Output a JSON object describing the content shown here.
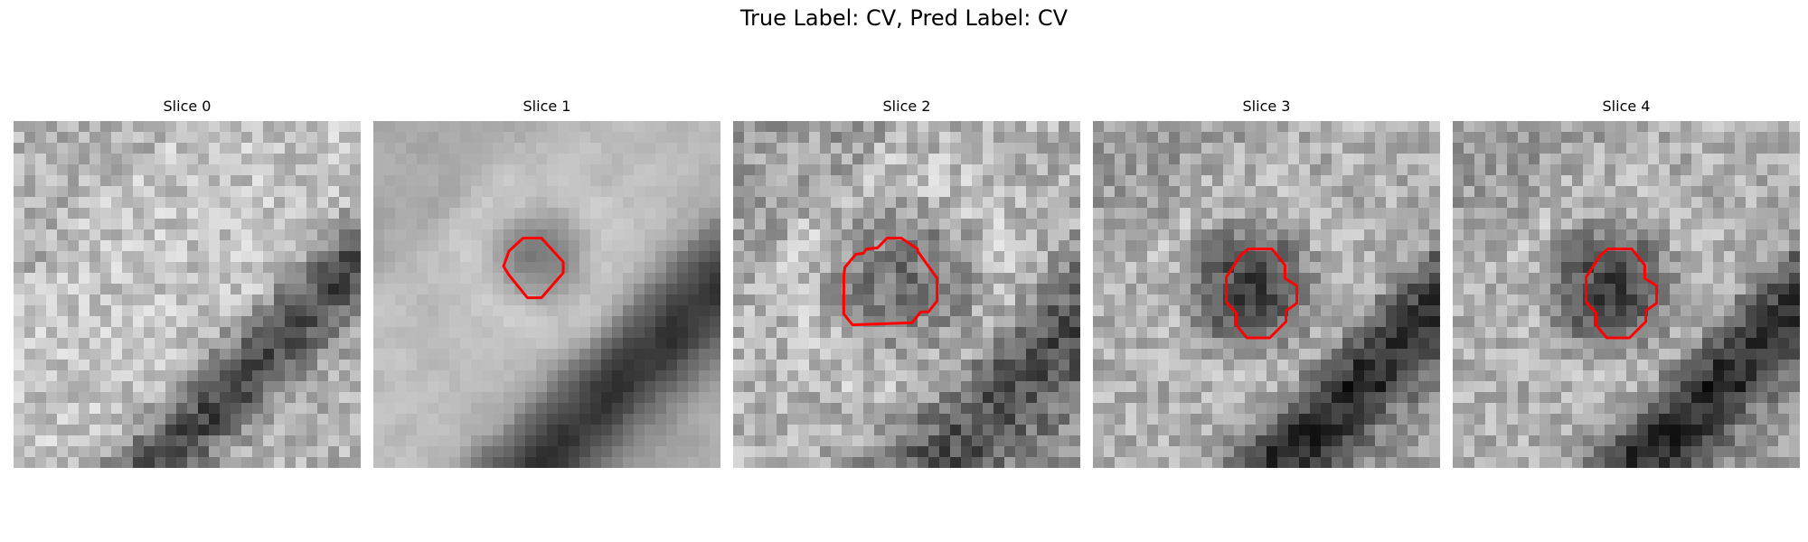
{
  "figure": {
    "title": "True Label: CV, Pred Label: CV"
  },
  "panels": [
    {
      "title": "Slice 0",
      "has_contour": false
    },
    {
      "title": "Slice 1",
      "has_contour": true
    },
    {
      "title": "Slice 2",
      "has_contour": true
    },
    {
      "title": "Slice 3",
      "has_contour": true
    },
    {
      "title": "Slice 4",
      "has_contour": true
    }
  ],
  "contour_color": "#ff0000",
  "colormap": "grayscale"
}
